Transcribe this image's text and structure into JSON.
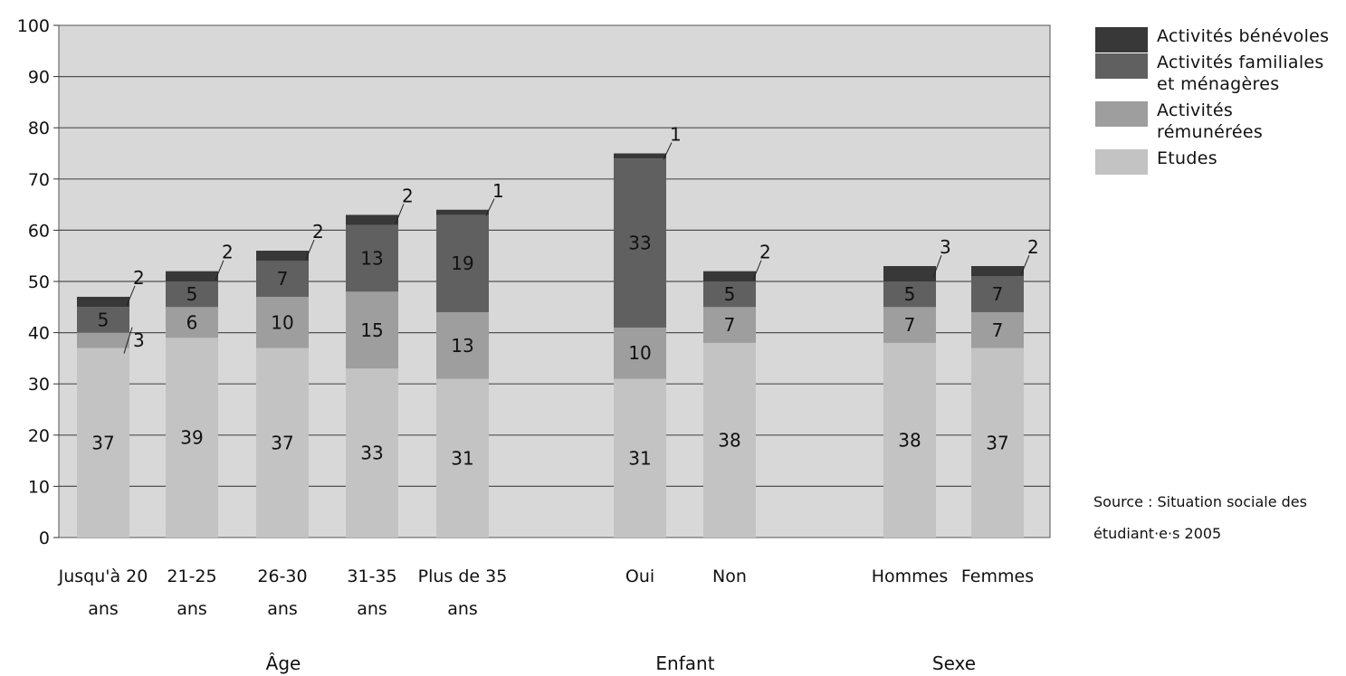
{
  "chart_data": {
    "type": "bar",
    "stacked": true,
    "categories": [
      "Jusqu'à 20 ans",
      "21-25 ans",
      "26-30 ans",
      "31-35 ans",
      "Plus de 35 ans",
      "Oui",
      "Non",
      "Hommes",
      "Femmes"
    ],
    "groups": [
      {
        "label": "Âge",
        "categories": [
          "Jusqu'à 20 ans",
          "21-25 ans",
          "26-30 ans",
          "31-35 ans",
          "Plus de 35 ans"
        ]
      },
      {
        "label": "Enfant",
        "categories": [
          "Oui",
          "Non"
        ]
      },
      {
        "label": "Sexe",
        "categories": [
          "Hommes",
          "Femmes"
        ]
      }
    ],
    "series": [
      {
        "name": "Etudes",
        "color": "#c3c3c3",
        "values": [
          37,
          39,
          37,
          33,
          31,
          31,
          38,
          38,
          37
        ]
      },
      {
        "name": "Activités rémunérées",
        "color": "#9e9e9e",
        "values": [
          3,
          6,
          10,
          15,
          13,
          10,
          7,
          7,
          7
        ]
      },
      {
        "name": "Activités familiales et ménagères",
        "color": "#606060",
        "values": [
          5,
          5,
          7,
          13,
          19,
          33,
          5,
          5,
          7
        ]
      },
      {
        "name": "Activités bénévoles",
        "color": "#383838",
        "values": [
          2,
          2,
          2,
          2,
          1,
          1,
          2,
          3,
          2
        ]
      }
    ],
    "ylim": [
      0,
      100
    ],
    "yticks": [
      0,
      10,
      20,
      30,
      40,
      50,
      60,
      70,
      80,
      90,
      100
    ],
    "legend_order": [
      "Activités bénévoles",
      "Activités familiales et ménagères",
      "Activités rémunérées",
      "Etudes"
    ],
    "legend_position": "right",
    "grid": true,
    "plot_background": "#d8d8d8",
    "source": "Source : Situation sociale des étudiant·e·s 2005"
  }
}
